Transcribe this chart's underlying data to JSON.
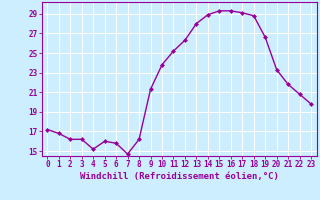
{
  "x": [
    0,
    1,
    2,
    3,
    4,
    5,
    6,
    7,
    8,
    9,
    10,
    11,
    12,
    13,
    14,
    15,
    16,
    17,
    18,
    19,
    20,
    21,
    22,
    23
  ],
  "y": [
    17.2,
    16.8,
    16.2,
    16.2,
    15.2,
    16.0,
    15.8,
    14.7,
    16.2,
    21.3,
    23.8,
    25.2,
    26.3,
    28.0,
    28.9,
    29.3,
    29.3,
    29.1,
    28.8,
    26.6,
    23.3,
    21.8,
    20.8,
    19.8
  ],
  "line_color": "#990099",
  "marker": "D",
  "marker_size": 2.0,
  "bg_color": "#cceeff",
  "grid_color": "#ffffff",
  "xlabel": "Windchill (Refroidissement éolien,°C)",
  "ylabel": "",
  "ylim": [
    14.5,
    30.2
  ],
  "yticks": [
    15,
    17,
    19,
    21,
    23,
    25,
    27,
    29
  ],
  "xticks": [
    0,
    1,
    2,
    3,
    4,
    5,
    6,
    7,
    8,
    9,
    10,
    11,
    12,
    13,
    14,
    15,
    16,
    17,
    18,
    19,
    20,
    21,
    22,
    23
  ],
  "tick_label_fontsize": 5.5,
  "xlabel_fontsize": 6.5,
  "line_width": 1.0
}
